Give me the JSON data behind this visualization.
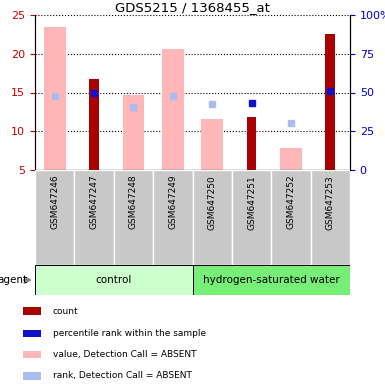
{
  "title": "GDS5215 / 1368455_at",
  "categories": [
    "GSM647246",
    "GSM647247",
    "GSM647248",
    "GSM647249",
    "GSM647250",
    "GSM647251",
    "GSM647252",
    "GSM647253"
  ],
  "ylim_left": [
    5,
    25
  ],
  "ylim_right": [
    0,
    100
  ],
  "yticks_left": [
    5,
    10,
    15,
    20,
    25
  ],
  "yticks_right": [
    0,
    25,
    50,
    75,
    100
  ],
  "count_values": [
    null,
    16.7,
    null,
    null,
    null,
    11.9,
    null,
    22.5
  ],
  "rank_pct": [
    null,
    50.0,
    null,
    null,
    null,
    43.0,
    null,
    51.0
  ],
  "value_absent": [
    23.5,
    null,
    14.7,
    20.6,
    11.6,
    null,
    7.8,
    null
  ],
  "rank_absent_left": [
    14.5,
    null,
    13.1,
    14.5,
    13.5,
    null,
    11.1,
    null
  ],
  "count_color": "#AA0000",
  "rank_color": "#1111CC",
  "value_absent_color": "#FFB6B6",
  "rank_absent_color": "#AABBEE",
  "group1_label": "control",
  "group2_label": "hydrogen-saturated water",
  "group1_color": "#CCFFCC",
  "group2_color": "#77EE77",
  "left_tick_color": "#CC0000",
  "right_tick_color": "#0000CC",
  "legend_items": [
    "count",
    "percentile rank within the sample",
    "value, Detection Call = ABSENT",
    "rank, Detection Call = ABSENT"
  ],
  "legend_colors": [
    "#AA0000",
    "#1111CC",
    "#FFB6B6",
    "#AABBEE"
  ]
}
